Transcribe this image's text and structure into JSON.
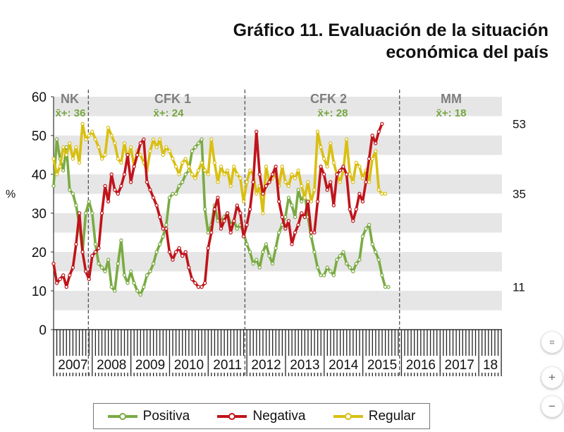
{
  "title": {
    "line1": "Gráfico 11. Evaluación de la situación",
    "line2": "económica del país"
  },
  "chart_data": {
    "type": "line",
    "ylabel": "%",
    "ylim": [
      0,
      60
    ],
    "yticks": [
      "0",
      "10",
      "20",
      "30",
      "40",
      "50",
      "60"
    ],
    "grid": "alternating-bands",
    "years": [
      "2007",
      "2008",
      "2009",
      "2010",
      "2011",
      "2012",
      "2013",
      "2014",
      "2015",
      "2016",
      "2017",
      "18"
    ],
    "periods": [
      {
        "label": "NK",
        "avg": "x̄+: 36"
      },
      {
        "label": "CFK 1",
        "avg": "x̄+: 24"
      },
      {
        "label": "CFK 2",
        "avg": "x̄+: 28"
      },
      {
        "label": "MM",
        "avg": "x̄+: 18"
      }
    ],
    "end_labels": [
      "53",
      "35",
      "11"
    ],
    "colors": {
      "positiva": "#7aab43",
      "negativa": "#c0141b",
      "regular": "#d9bf12",
      "period_text": "#7f7f7f",
      "avg_text": "#77a640"
    },
    "series": [
      {
        "name": "Positiva",
        "start": 2007.0,
        "step": 0.0833,
        "values": [
          37,
          49,
          44,
          41,
          47,
          36,
          35,
          32,
          27,
          20,
          30,
          33,
          30,
          22,
          17,
          16,
          15,
          18,
          11,
          10,
          17,
          23,
          14,
          12,
          15,
          12,
          10,
          9,
          11,
          14,
          15,
          17,
          20,
          22,
          24,
          27,
          34,
          35,
          35,
          37,
          38,
          40,
          41,
          46,
          47,
          48,
          49,
          31,
          25,
          27,
          32,
          28,
          28,
          29,
          30,
          27,
          28,
          26,
          27,
          25,
          22,
          20,
          17,
          18,
          16,
          20,
          22,
          19,
          17,
          21,
          25,
          27,
          29,
          34,
          32,
          29,
          36,
          33,
          35,
          29,
          24,
          20,
          16,
          14,
          14,
          16,
          15,
          14,
          18,
          19,
          20,
          17,
          16,
          15,
          17,
          18,
          24,
          26,
          27,
          22,
          20,
          18,
          14,
          11,
          11
        ]
      },
      {
        "name": "Negativa",
        "start": 2007.0,
        "step": 0.0833,
        "values": [
          17,
          12,
          13,
          14,
          11,
          14,
          16,
          22,
          30,
          20,
          15,
          13,
          19,
          20,
          21,
          30,
          37,
          33,
          40,
          36,
          35,
          37,
          40,
          45,
          38,
          42,
          45,
          48,
          49,
          38,
          36,
          34,
          32,
          29,
          26,
          26,
          20,
          18,
          20,
          21,
          19,
          20,
          16,
          13,
          12,
          11,
          11,
          12,
          21,
          25,
          31,
          34,
          26,
          28,
          30,
          25,
          28,
          32,
          30,
          24,
          27,
          31,
          38,
          51,
          40,
          35,
          37,
          38,
          40,
          42,
          33,
          29,
          26,
          28,
          22,
          25,
          27,
          30,
          29,
          33,
          25,
          25,
          33,
          42,
          40,
          36,
          38,
          32,
          40,
          41,
          42,
          40,
          31,
          28,
          31,
          35,
          33,
          38,
          44,
          50,
          48,
          51,
          53
        ]
      },
      {
        "name": "Regular",
        "start": 2007.0,
        "step": 0.0833,
        "values": [
          44,
          40,
          42,
          47,
          45,
          48,
          44,
          47,
          43,
          53,
          49,
          50,
          51,
          49,
          47,
          44,
          45,
          52,
          50,
          48,
          44,
          43,
          48,
          44,
          47,
          42,
          46,
          45,
          43,
          41,
          46,
          49,
          47,
          49,
          45,
          47,
          46,
          44,
          42,
          40,
          43,
          44,
          42,
          40,
          39,
          41,
          43,
          41,
          40,
          49,
          43,
          38,
          42,
          40,
          41,
          37,
          42,
          40,
          39,
          33,
          38,
          41,
          40,
          35,
          37,
          30,
          42,
          38,
          39,
          40,
          37,
          42,
          38,
          37,
          40,
          39,
          41,
          37,
          34,
          38,
          33,
          36,
          51,
          47,
          44,
          42,
          48,
          43,
          40,
          38,
          41,
          49,
          40,
          38,
          43,
          42,
          39,
          41,
          38,
          44,
          46,
          36,
          35,
          35
        ]
      }
    ]
  },
  "legend": [
    {
      "label": "Positiva",
      "color": "#7aab43"
    },
    {
      "label": "Negativa",
      "color": "#c0141b"
    },
    {
      "label": "Regular",
      "color": "#d9bf12"
    }
  ],
  "controls": {
    "fit": "⌗",
    "zoom_in": "+",
    "zoom_out": "−"
  }
}
